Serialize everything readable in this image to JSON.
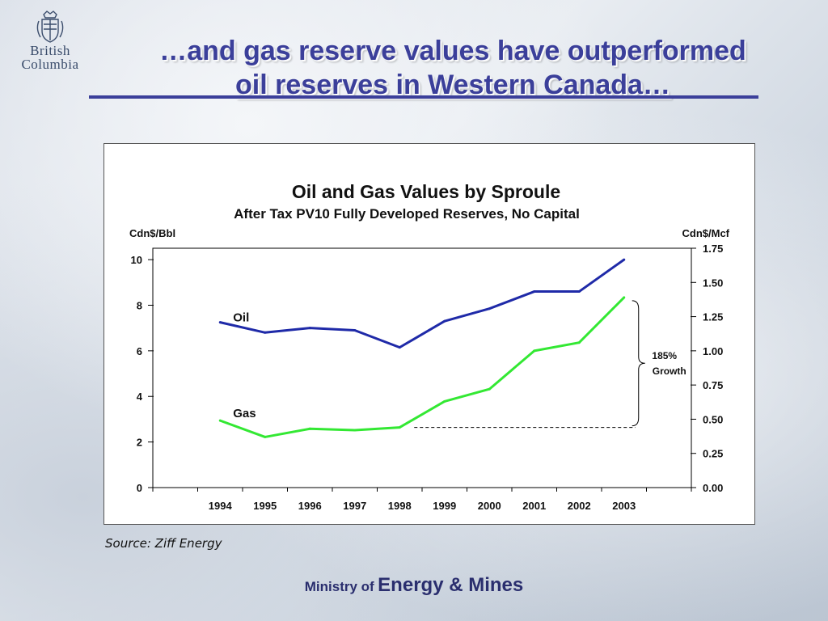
{
  "logo": {
    "line1": "British",
    "line2": "Columbia"
  },
  "slide": {
    "title_line1": "…and gas reserve values have outperformed",
    "title_line2": "oil reserves in Western Canada…"
  },
  "source": "Source:  Ziff Energy",
  "footer": {
    "prefix": "Ministry of",
    "name": "Energy & Mines"
  },
  "chart_data": {
    "type": "line",
    "title": "Oil and Gas Values by Sproule",
    "subtitle": "After Tax PV10 Fully Developed Reserves, No  Capital",
    "left_axis_label": "Cdn$/Bbl",
    "right_axis_label": "Cdn$/Mcf",
    "left_ylim": [
      0,
      10.5
    ],
    "right_ylim": [
      0,
      1.75
    ],
    "left_ticks": [
      "0",
      "2",
      "4",
      "6",
      "8",
      "10"
    ],
    "right_ticks": [
      "0.00",
      "0.25",
      "0.50",
      "0.75",
      "1.00",
      "1.25",
      "1.50",
      "1.75"
    ],
    "categories": [
      "1994",
      "1995",
      "1996",
      "1997",
      "1998",
      "1999",
      "2000",
      "2001",
      "2002",
      "2003"
    ],
    "series": [
      {
        "name": "Oil",
        "axis": "left",
        "color": "#1f2aa8",
        "values": [
          7.25,
          6.8,
          7.0,
          6.9,
          6.15,
          7.3,
          7.85,
          8.6,
          8.6,
          10.0
        ]
      },
      {
        "name": "Gas",
        "axis": "right",
        "color": "#33e833",
        "values": [
          0.49,
          0.37,
          0.43,
          0.42,
          0.44,
          0.63,
          0.72,
          1.0,
          1.06,
          1.39
        ]
      }
    ],
    "annotation": {
      "line1": "185%",
      "line2": "Growth"
    }
  }
}
